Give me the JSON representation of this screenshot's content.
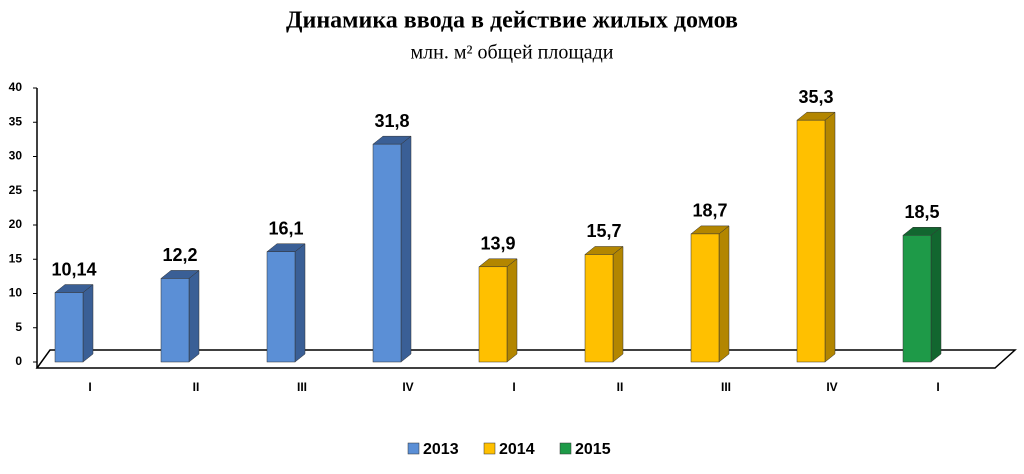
{
  "chart_data": {
    "type": "bar3d",
    "title": "Динамика ввода в действие жилых домов",
    "subtitle": "млн. м² общей площади",
    "categories": [
      "I",
      "II",
      "III",
      "IV",
      "I",
      "II",
      "III",
      "IV",
      "I"
    ],
    "series": [
      {
        "name": "2013",
        "color": "#5b8fd6",
        "side_color": "#3a5f96",
        "values": [
          10.14,
          12.2,
          16.1,
          31.8,
          null,
          null,
          null,
          null,
          null
        ],
        "value_labels": [
          "10,14",
          "12,2",
          "16,1",
          "31,8",
          null,
          null,
          null,
          null,
          null
        ]
      },
      {
        "name": "2014",
        "color": "#ffc000",
        "side_color": "#b38600",
        "values": [
          null,
          null,
          null,
          null,
          13.9,
          15.7,
          18.7,
          35.3,
          null
        ],
        "value_labels": [
          null,
          null,
          null,
          null,
          "13,9",
          "15,7",
          "18,7",
          "35,3",
          null
        ]
      },
      {
        "name": "2015",
        "color": "#1e9a48",
        "side_color": "#12662f",
        "values": [
          null,
          null,
          null,
          null,
          null,
          null,
          null,
          null,
          18.5
        ],
        "value_labels": [
          null,
          null,
          null,
          null,
          null,
          null,
          null,
          null,
          "18,5"
        ]
      }
    ],
    "ylim": [
      0,
      40
    ],
    "yticks": [
      0,
      5,
      10,
      15,
      20,
      25,
      30,
      35,
      40
    ],
    "legend": "bottom"
  }
}
